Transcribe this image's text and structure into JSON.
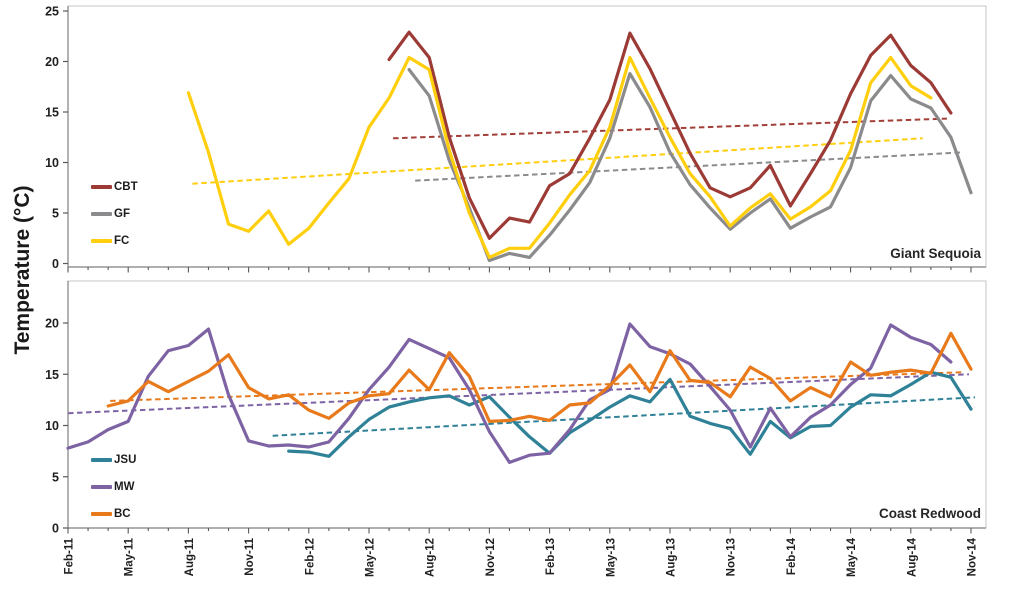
{
  "chart_meta": {
    "y_axis_title": "Temperature (°C)",
    "background_color": "#ffffff",
    "panel_border_color": "#c4c4c4",
    "axis_line_color": "#7f7f7f",
    "tick_color": "#595959",
    "label_color": "#1f1f1f",
    "x_major_tick_every": 3
  },
  "chart_data": [
    {
      "type": "line",
      "title": "Giant Sequoia",
      "panel": "top",
      "ylim": [
        0,
        25.5
      ],
      "yticks": [
        0,
        5,
        10,
        15,
        20,
        25
      ],
      "x_categories": [
        "Feb-11",
        "Mar-11",
        "Apr-11",
        "May-11",
        "Jun-11",
        "Jul-11",
        "Aug-11",
        "Sep-11",
        "Oct-11",
        "Nov-11",
        "Dec-11",
        "Jan-12",
        "Feb-12",
        "Mar-12",
        "Apr-12",
        "May-12",
        "Jun-12",
        "Jul-12",
        "Aug-12",
        "Sep-12",
        "Oct-12",
        "Nov-12",
        "Dec-12",
        "Jan-13",
        "Feb-13",
        "Mar-13",
        "Apr-13",
        "May-13",
        "Jun-13",
        "Jul-13",
        "Aug-13",
        "Sep-13",
        "Oct-13",
        "Nov-13",
        "Dec-13",
        "Jan-14",
        "Feb-14",
        "Mar-14",
        "Apr-14",
        "May-14",
        "Jun-14",
        "Jul-14",
        "Aug-14",
        "Sep-14",
        "Oct-14",
        "Nov-14"
      ],
      "series": [
        {
          "name": "CBT",
          "color": "#9c3a36",
          "values": [
            null,
            null,
            null,
            null,
            null,
            null,
            null,
            null,
            null,
            null,
            null,
            null,
            null,
            null,
            null,
            null,
            20.2,
            22.9,
            20.4,
            12.5,
            6.5,
            2.5,
            4.5,
            4.1,
            7.7,
            8.9,
            12.4,
            16.2,
            22.8,
            19.3,
            15.1,
            10.9,
            7.5,
            6.6,
            7.5,
            9.7,
            5.7,
            8.9,
            12.2,
            16.8,
            20.6,
            22.6,
            19.6,
            17.9,
            14.9,
            null
          ]
        },
        {
          "name": "GF",
          "color": "#8b8b8e",
          "values": [
            null,
            null,
            null,
            null,
            null,
            null,
            null,
            null,
            null,
            null,
            null,
            null,
            null,
            null,
            null,
            null,
            null,
            19.2,
            16.6,
            10.2,
            5.5,
            0.3,
            1.0,
            0.6,
            2.8,
            5.3,
            8.0,
            12.4,
            18.8,
            15.5,
            11.0,
            7.8,
            5.5,
            3.4,
            5.0,
            6.4,
            3.5,
            4.6,
            5.6,
            9.5,
            16.1,
            18.6,
            16.3,
            15.4,
            12.5,
            7.0
          ]
        },
        {
          "name": "FC",
          "color": "#ffce0d",
          "values": [
            null,
            null,
            null,
            null,
            null,
            null,
            16.9,
            11.0,
            3.9,
            3.2,
            5.2,
            1.9,
            3.5,
            6.0,
            8.4,
            13.5,
            16.4,
            20.4,
            19.2,
            11.2,
            5.0,
            0.6,
            1.5,
            1.5,
            4.0,
            6.8,
            9.2,
            13.5,
            20.4,
            16.4,
            12.5,
            8.9,
            6.6,
            3.7,
            5.5,
            6.9,
            4.4,
            5.6,
            7.2,
            11.2,
            17.9,
            20.4,
            17.6,
            16.4,
            null,
            null
          ]
        }
      ],
      "trendlines": [
        {
          "series": "CBT",
          "color": "#a23f38",
          "start_idx": 16.2,
          "start_val": 12.4,
          "end_idx": 43.8,
          "end_val": 14.35
        },
        {
          "series": "GF",
          "color": "#8b8b8e",
          "start_idx": 17.3,
          "start_val": 8.2,
          "end_idx": 44.6,
          "end_val": 11.0
        },
        {
          "series": "FC",
          "color": "#ffce0d",
          "start_idx": 6.2,
          "start_val": 7.9,
          "end_idx": 42.6,
          "end_val": 12.4
        }
      ]
    },
    {
      "type": "line",
      "title": "Coast Redwood",
      "panel": "bottom",
      "ylim": [
        0,
        24.1
      ],
      "yticks": [
        0,
        5,
        10,
        15,
        20
      ],
      "x_categories": [
        "Feb-11",
        "Mar-11",
        "Apr-11",
        "May-11",
        "Jun-11",
        "Jul-11",
        "Aug-11",
        "Sep-11",
        "Oct-11",
        "Nov-11",
        "Dec-11",
        "Jan-12",
        "Feb-12",
        "Mar-12",
        "Apr-12",
        "May-12",
        "Jun-12",
        "Jul-12",
        "Aug-12",
        "Sep-12",
        "Oct-12",
        "Nov-12",
        "Dec-12",
        "Jan-13",
        "Feb-13",
        "Mar-13",
        "Apr-13",
        "May-13",
        "Jun-13",
        "Jul-13",
        "Aug-13",
        "Sep-13",
        "Oct-13",
        "Nov-13",
        "Dec-13",
        "Jan-14",
        "Feb-14",
        "Mar-14",
        "Apr-14",
        "May-14",
        "Jun-14",
        "Jul-14",
        "Aug-14",
        "Sep-14",
        "Oct-14",
        "Nov-14"
      ],
      "series": [
        {
          "name": "JSU",
          "color": "#2f8197",
          "values": [
            null,
            null,
            null,
            null,
            null,
            null,
            null,
            null,
            null,
            null,
            null,
            7.5,
            7.4,
            7.0,
            8.9,
            10.6,
            11.8,
            12.3,
            12.7,
            12.9,
            12.0,
            12.8,
            10.8,
            8.9,
            7.3,
            9.3,
            10.5,
            11.8,
            12.9,
            12.3,
            14.5,
            10.9,
            10.2,
            9.7,
            7.2,
            10.4,
            8.8,
            9.9,
            10.0,
            11.8,
            13.0,
            12.9,
            14.0,
            15.2,
            14.7,
            11.6
          ]
        },
        {
          "name": "MW",
          "color": "#7e63a4",
          "values": [
            7.8,
            8.4,
            9.6,
            10.4,
            14.8,
            17.3,
            17.8,
            19.4,
            13.0,
            8.5,
            8.0,
            8.1,
            7.9,
            8.4,
            10.7,
            13.5,
            15.7,
            18.4,
            17.5,
            16.6,
            13.5,
            9.4,
            6.4,
            7.1,
            7.3,
            9.6,
            12.5,
            13.5,
            19.9,
            17.7,
            17.0,
            16.0,
            13.8,
            11.5,
            7.9,
            11.7,
            8.9,
            10.8,
            12.0,
            14.0,
            15.6,
            19.8,
            18.6,
            17.9,
            16.2,
            null
          ]
        },
        {
          "name": "BC",
          "color": "#e87a1b",
          "values": [
            null,
            null,
            11.9,
            12.4,
            14.3,
            13.3,
            14.3,
            15.3,
            16.9,
            13.7,
            12.6,
            13.0,
            11.5,
            10.7,
            12.2,
            12.9,
            13.1,
            15.4,
            13.5,
            17.1,
            14.8,
            10.4,
            10.5,
            10.9,
            10.5,
            12.0,
            12.2,
            13.9,
            15.9,
            13.3,
            17.3,
            14.4,
            14.2,
            12.8,
            15.7,
            14.6,
            12.4,
            13.7,
            12.8,
            16.2,
            14.9,
            15.2,
            15.4,
            15.1,
            19.0,
            15.5
          ]
        }
      ],
      "trendlines": [
        {
          "series": "JSU",
          "color": "#2f8197",
          "start_idx": 10.2,
          "start_val": 9.0,
          "end_idx": 45.2,
          "end_val": 12.75
        },
        {
          "series": "MW",
          "color": "#7e63a4",
          "start_idx": 0.0,
          "start_val": 11.2,
          "end_idx": 44.9,
          "end_val": 15.0
        },
        {
          "series": "BC",
          "color": "#e87a1b",
          "start_idx": 2.1,
          "start_val": 12.4,
          "end_idx": 44.6,
          "end_val": 15.2
        }
      ]
    }
  ]
}
